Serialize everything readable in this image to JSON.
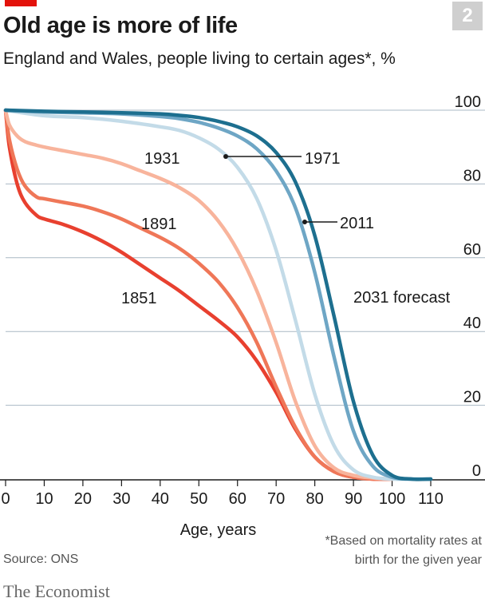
{
  "badge": "2",
  "title": "Old age is more of life",
  "subtitle": "England and Wales, people living to certain ages*, %",
  "source": "Source: ONS",
  "footnote": {
    "line1": "*Based on mortality rates at",
    "line2": "birth for the given year"
  },
  "brand": "The Economist",
  "chart_data": {
    "type": "line",
    "xlabel": "Age, years",
    "ylabel": "",
    "xlim": [
      0,
      110
    ],
    "ylim": [
      0,
      100
    ],
    "x_ticks": [
      "0",
      "10",
      "20",
      "30",
      "40",
      "50",
      "60",
      "70",
      "80",
      "90",
      "100",
      "110"
    ],
    "y_ticks": [
      "0",
      "20",
      "40",
      "60",
      "80",
      "100"
    ],
    "grid": true,
    "series": [
      {
        "name": "1851",
        "color": "#e8402f",
        "x": [
          0,
          1,
          3,
          5,
          8,
          10,
          15,
          20,
          25,
          30,
          35,
          40,
          45,
          50,
          55,
          60,
          65,
          70,
          75,
          80,
          85,
          90,
          95,
          100
        ],
        "y": [
          100,
          90,
          80,
          75,
          71.5,
          70.5,
          69,
          67,
          64.5,
          61.5,
          58,
          54.5,
          51,
          47,
          43,
          38.5,
          32,
          23.5,
          13.5,
          6,
          2,
          0.5,
          0,
          0
        ]
      },
      {
        "name": "1891",
        "color": "#ef7758",
        "x": [
          0,
          1,
          3,
          5,
          8,
          10,
          15,
          20,
          25,
          30,
          35,
          40,
          45,
          50,
          55,
          60,
          65,
          70,
          75,
          80,
          85,
          90,
          95,
          100
        ],
        "y": [
          100,
          92,
          84,
          79.5,
          76.5,
          76,
          75,
          74,
          72.5,
          70.5,
          68,
          65.5,
          62.5,
          58.5,
          53.5,
          46.5,
          37,
          25,
          14,
          6,
          2,
          0.5,
          0,
          0
        ]
      },
      {
        "name": "1931",
        "color": "#f8b49c",
        "x": [
          0,
          1,
          3,
          5,
          8,
          10,
          15,
          20,
          25,
          30,
          35,
          40,
          45,
          50,
          55,
          60,
          65,
          70,
          75,
          80,
          85,
          90,
          95,
          100
        ],
        "y": [
          100,
          96,
          93,
          91.5,
          90.5,
          90,
          89,
          88,
          87,
          85.5,
          83.5,
          81.5,
          79,
          75.5,
          70,
          62,
          51,
          37,
          21,
          9,
          3,
          1,
          0.3,
          0
        ]
      },
      {
        "name": "1971",
        "color": "#c3dbe8",
        "x": [
          0,
          10,
          20,
          30,
          40,
          45,
          50,
          55,
          60,
          65,
          70,
          75,
          80,
          85,
          90,
          95,
          100,
          105
        ],
        "y": [
          100,
          98.5,
          98,
          97,
          95.5,
          94.5,
          92.5,
          89.5,
          84.5,
          76,
          62,
          43,
          23,
          9,
          2.5,
          0.5,
          0,
          0
        ]
      },
      {
        "name": "2011",
        "color": "#6ea6c5",
        "x": [
          0,
          10,
          20,
          30,
          40,
          45,
          50,
          55,
          60,
          65,
          70,
          75,
          80,
          85,
          90,
          95,
          100,
          105,
          110
        ],
        "y": [
          100,
          99.5,
          99.3,
          99,
          98.3,
          97.7,
          96.7,
          95.2,
          93,
          89.5,
          83.5,
          73.5,
          56,
          33,
          13,
          3.5,
          0.5,
          0,
          0
        ]
      },
      {
        "name": "2031 forecast",
        "color": "#1d6f8f",
        "x": [
          0,
          10,
          20,
          30,
          40,
          45,
          50,
          55,
          60,
          65,
          70,
          75,
          80,
          85,
          90,
          95,
          100,
          105,
          110
        ],
        "y": [
          100,
          99.7,
          99.5,
          99.3,
          99,
          98.6,
          98,
          97,
          95.5,
          93,
          88.5,
          80.5,
          66,
          44,
          21,
          6.5,
          1,
          0,
          0
        ]
      }
    ],
    "annotations": [
      {
        "text": "1851",
        "series": "1851"
      },
      {
        "text": "1891",
        "series": "1891"
      },
      {
        "text": "1931",
        "series": "1931"
      },
      {
        "text": "1971",
        "series": "1971"
      },
      {
        "text": "2011",
        "series": "2011"
      },
      {
        "text": "2031 forecast",
        "series": "2031 forecast"
      }
    ]
  }
}
